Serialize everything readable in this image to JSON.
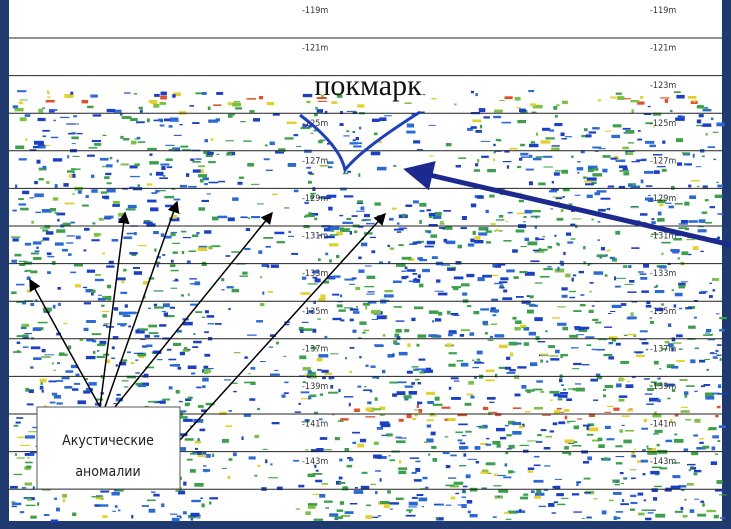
{
  "title": "покмарк",
  "note_box": {
    "line1": "Акустические",
    "line2": "аномалии"
  },
  "depth_labels": [
    "-119m",
    "-121m",
    "-123m",
    "-125m",
    "-127m",
    "-129m",
    "-131m",
    "-133m",
    "-135m",
    "-137m",
    "-139m",
    "-141m",
    "-143m"
  ]
}
